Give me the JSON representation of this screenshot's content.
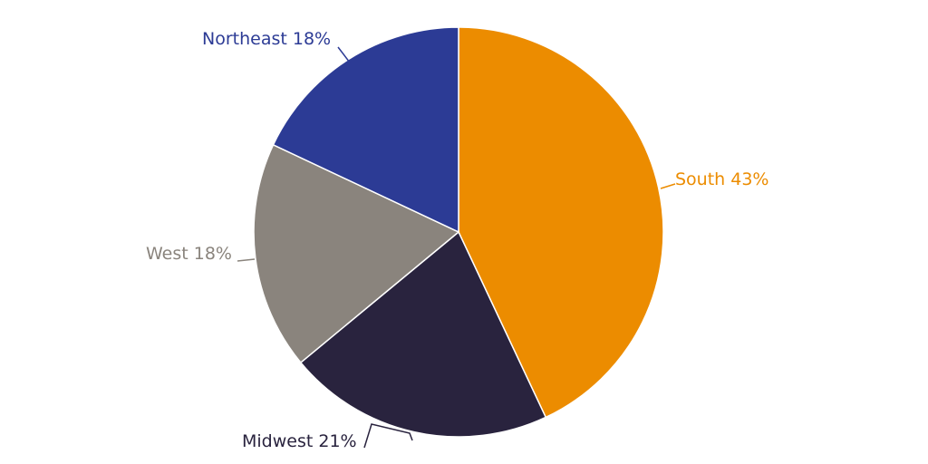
{
  "chart_data": {
    "type": "pie",
    "title": "",
    "categories": [
      "South",
      "Midwest",
      "West",
      "Northeast"
    ],
    "values": [
      43,
      21,
      18,
      18
    ],
    "unit": "%",
    "colors": [
      "#EC8C00",
      "#29233E",
      "#8A847D",
      "#2C3B95"
    ],
    "labels": [
      "South 43%",
      "Midwest 21%",
      "West 18%",
      "Northeast 18%"
    ],
    "start_angle": "12 o'clock, clockwise",
    "legend": "none (direct labels with leader lines)"
  },
  "labels": {
    "south": "South 43%",
    "midwest": "Midwest 21%",
    "west": "West 18%",
    "northeast": "Northeast 18%"
  }
}
